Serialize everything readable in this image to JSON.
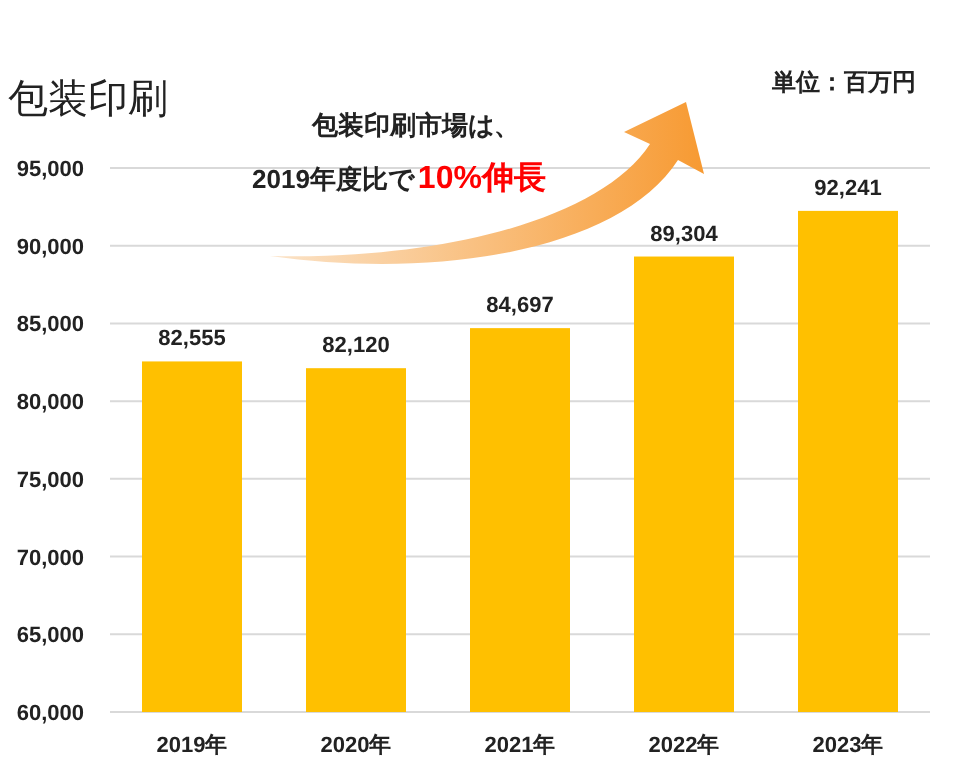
{
  "chart_data": {
    "type": "bar",
    "title": "包装印刷",
    "categories": [
      "2019年",
      "2020年",
      "2021年",
      "2022年",
      "2023年"
    ],
    "values": [
      82555,
      82120,
      84697,
      89304,
      92241
    ],
    "value_labels": [
      "82,555",
      "82,120",
      "84,697",
      "89,304",
      "92,241"
    ],
    "color": "#ffc000",
    "ylim": [
      60000,
      95000
    ],
    "yticks": [
      {
        "value": 60000,
        "label": "60,000"
      },
      {
        "value": 65000,
        "label": "65,000"
      },
      {
        "value": 70000,
        "label": "70,000"
      },
      {
        "value": 75000,
        "label": "75,000"
      },
      {
        "value": 80000,
        "label": "80,000"
      },
      {
        "value": 85000,
        "label": "85,000"
      },
      {
        "value": 90000,
        "label": "90,000"
      },
      {
        "value": 95000,
        "label": "95,000"
      }
    ],
    "grid": "y",
    "annotations": [
      "単位：百万円",
      "包装印刷市場は、",
      "2019年度比で",
      "10%伸長"
    ]
  }
}
